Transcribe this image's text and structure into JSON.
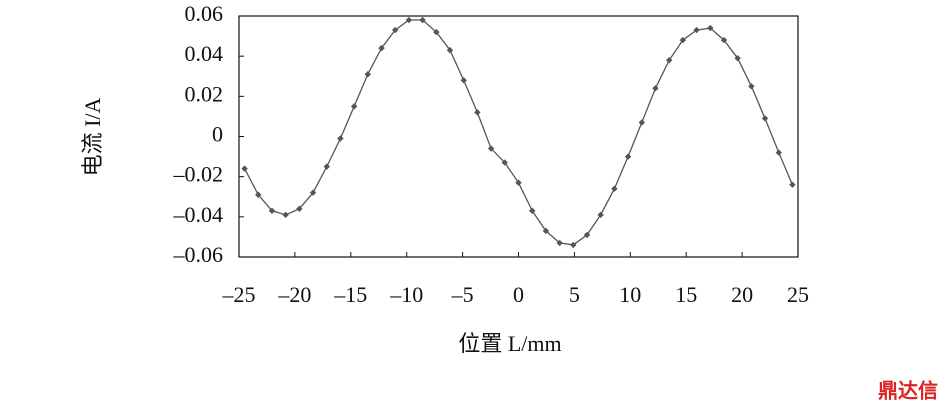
{
  "chart_data": {
    "type": "line",
    "xlabel": "位置 L/mm",
    "ylabel": "电流 I/A",
    "watermark": "鼎达信",
    "xlim": [
      -25,
      25
    ],
    "xticks": [
      {
        "value": -25,
        "label": "–25"
      },
      {
        "value": -20,
        "label": "–20"
      },
      {
        "value": -15,
        "label": "–15"
      },
      {
        "value": -10,
        "label": "–10"
      },
      {
        "value": -5,
        "label": "–5"
      },
      0,
      5,
      10,
      15,
      20,
      25
    ],
    "ylim": [
      -0.06,
      0.06
    ],
    "yticks": [
      {
        "value": -0.06,
        "label": "–0.06"
      },
      {
        "value": -0.04,
        "label": "–0.04"
      },
      {
        "value": -0.02,
        "label": "–0.02"
      },
      0,
      0.02,
      0.04,
      0.06
    ],
    "x": [
      -24.5,
      -23.28,
      -22.05,
      -20.83,
      -19.6,
      -18.38,
      -17.15,
      -15.93,
      -14.7,
      -13.48,
      -12.25,
      -11.03,
      -9.8,
      -8.58,
      -7.35,
      -6.13,
      -4.9,
      -3.68,
      -2.45,
      -1.23,
      0,
      1.23,
      2.45,
      3.68,
      4.9,
      6.13,
      7.35,
      8.58,
      9.8,
      11.03,
      12.25,
      13.48,
      14.7,
      15.93,
      17.15,
      18.38,
      19.6,
      20.83,
      22.05,
      23.28,
      24.5
    ],
    "series": [
      {
        "color": "#555555",
        "values": [
          -0.016,
          -0.029,
          -0.037,
          -0.039,
          -0.036,
          -0.028,
          -0.015,
          -0.001,
          0.015,
          0.031,
          0.044,
          0.053,
          0.058,
          0.058,
          0.052,
          0.043,
          0.028,
          0.012,
          -0.006,
          -0.013,
          -0.023,
          -0.037,
          -0.047,
          -0.053,
          -0.054,
          -0.049,
          -0.039,
          -0.026,
          -0.01,
          0.007,
          0.024,
          0.038,
          0.048,
          0.053,
          0.054,
          0.048,
          0.039,
          0.025,
          0.009,
          -0.008,
          -0.024
        ]
      }
    ]
  }
}
